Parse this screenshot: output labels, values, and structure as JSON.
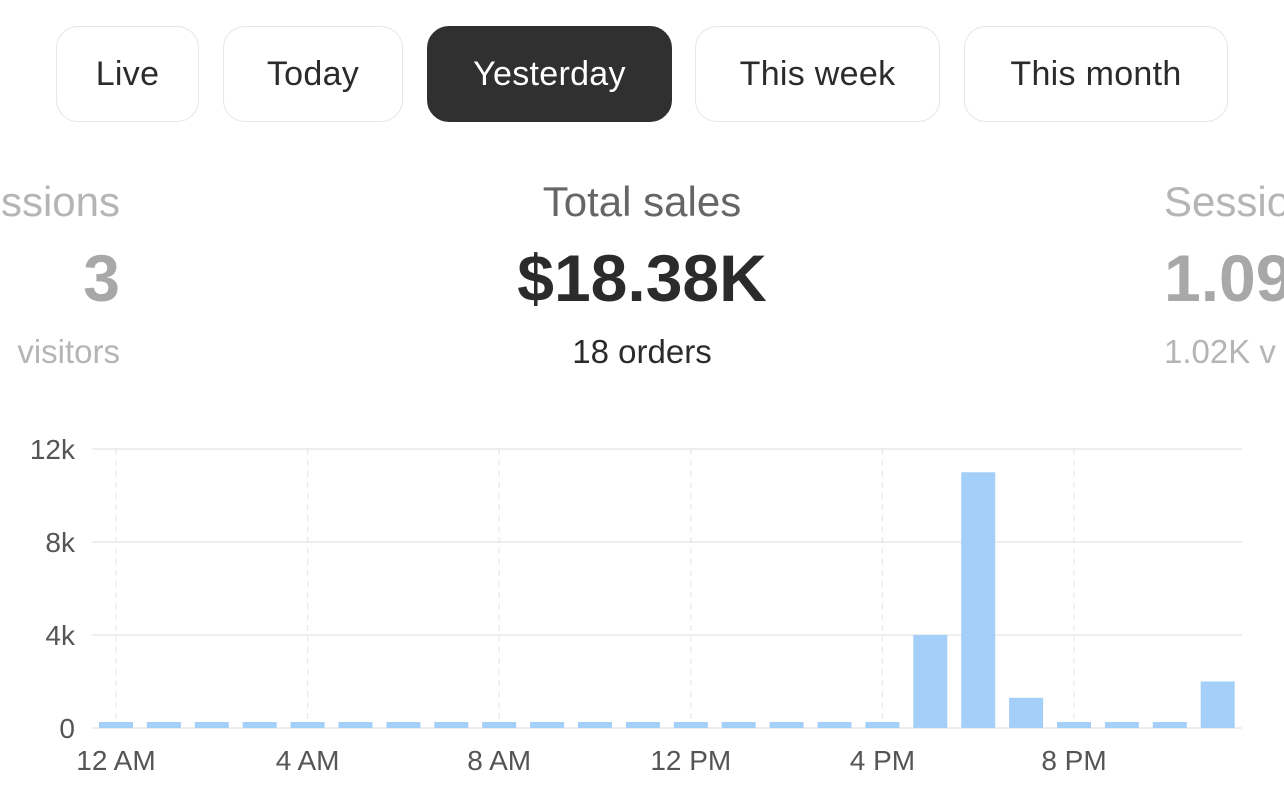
{
  "tabs": [
    {
      "label": "Live",
      "active": false
    },
    {
      "label": "Today",
      "active": false
    },
    {
      "label": "Yesterday",
      "active": true
    },
    {
      "label": "This week",
      "active": false
    },
    {
      "label": "This month",
      "active": false
    }
  ],
  "metrics": {
    "left": {
      "title": "ssions",
      "value": "3",
      "sub": "visitors"
    },
    "center": {
      "title": "Total sales",
      "value": "$18.38K",
      "sub": "18 orders"
    },
    "right": {
      "title": "Sessio",
      "value": "1.09",
      "sub": "1.02K v"
    }
  },
  "colors": {
    "bar": "#a3cff8",
    "active_tab": "#303030",
    "grid": "#e8e8e8"
  },
  "chart_data": {
    "type": "bar",
    "x": [
      "12 AM",
      "1 AM",
      "2 AM",
      "3 AM",
      "4 AM",
      "5 AM",
      "6 AM",
      "7 AM",
      "8 AM",
      "9 AM",
      "10 AM",
      "11 AM",
      "12 PM",
      "1 PM",
      "2 PM",
      "3 PM",
      "4 PM",
      "5 PM",
      "6 PM",
      "7 PM",
      "8 PM",
      "9 PM",
      "10 PM",
      "11 PM"
    ],
    "values": [
      0,
      0,
      0,
      0,
      0,
      0,
      0,
      0,
      0,
      0,
      0,
      0,
      0,
      0,
      0,
      0,
      0,
      4000,
      11000,
      1300,
      0,
      0,
      0,
      2000
    ],
    "x_tick_labels": [
      "12 AM",
      "4 AM",
      "8 AM",
      "12 PM",
      "4 PM",
      "8 PM"
    ],
    "y_ticks": [
      0,
      4000,
      8000,
      12000
    ],
    "y_tick_labels": [
      "0",
      "4k",
      "8k",
      "12k"
    ],
    "ylim": [
      0,
      12000
    ],
    "title": "",
    "xlabel": "",
    "ylabel": "",
    "grid": true,
    "legend": "none"
  }
}
